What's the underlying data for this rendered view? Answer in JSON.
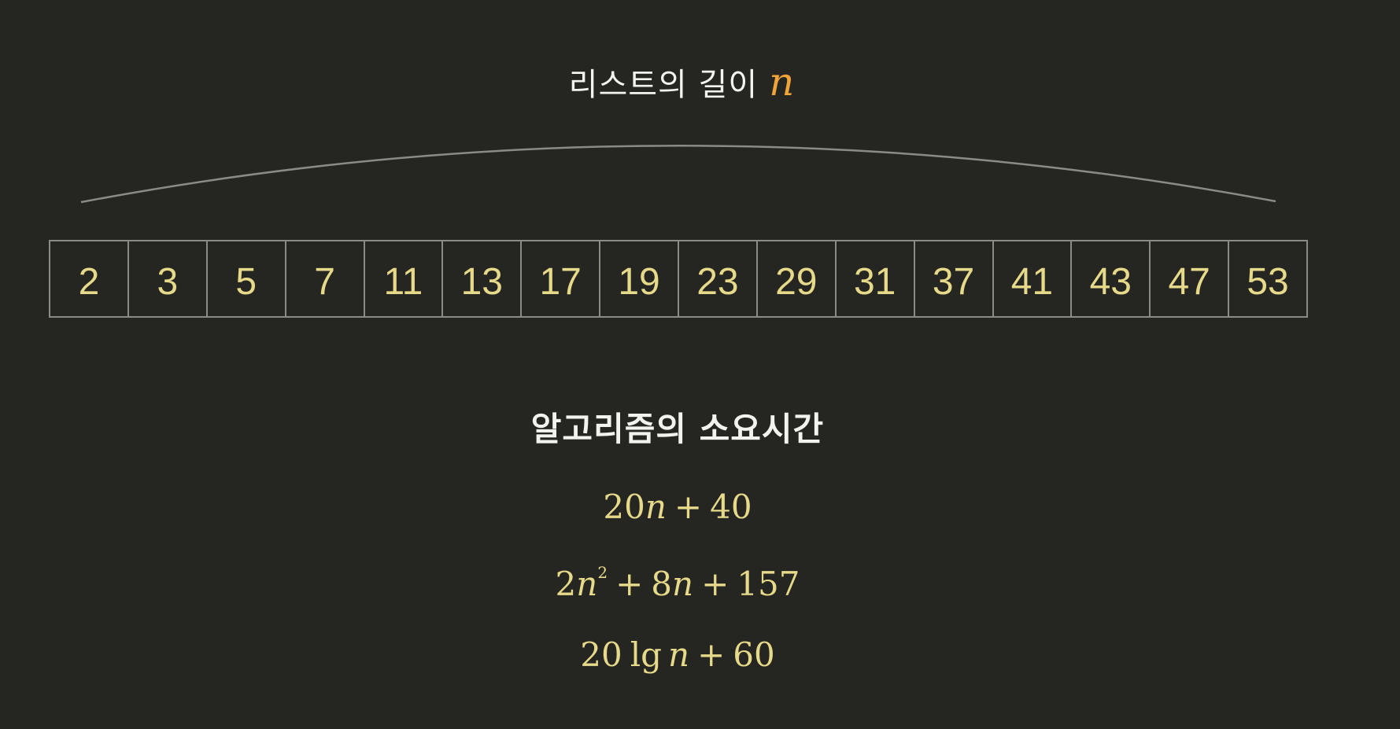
{
  "header": {
    "label": "리스트의 길이",
    "variable": "n"
  },
  "array": {
    "values": [
      "2",
      "3",
      "5",
      "7",
      "11",
      "13",
      "17",
      "19",
      "23",
      "29",
      "31",
      "37",
      "41",
      "43",
      "47",
      "53"
    ]
  },
  "section": {
    "title": "알고리즘의 소요시간"
  },
  "formulas": {
    "linear": {
      "coef": "20",
      "var": "n",
      "op": "+",
      "const": "40"
    },
    "quadratic": {
      "coef2": "2",
      "var": "n",
      "exp": "2",
      "op1": "+",
      "coef1": "8",
      "op2": "+",
      "const": "157"
    },
    "logarithmic": {
      "coef": "20",
      "fn": "lg",
      "var": "n",
      "op": "+",
      "const": "60"
    }
  },
  "colors": {
    "background": "#252621",
    "cell_value": "#e6d98a",
    "formula": "#e6d98a",
    "variable_accent": "#f0a339",
    "cell_border": "#8a8a86",
    "brace": "#8a8a86",
    "text": "#f2f2ee"
  }
}
